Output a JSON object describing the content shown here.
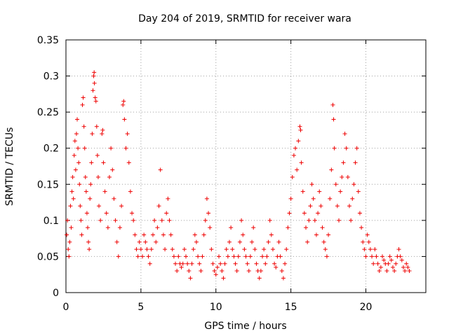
{
  "chart_data": {
    "type": "scatter",
    "title": "Day 204 of 2019, SRMTID for receiver wara",
    "xlabel": "GPS time / hours",
    "ylabel": "SRMTID / TECUs",
    "xlim": [
      0,
      24
    ],
    "ylim": [
      0,
      0.35
    ],
    "xticks": [
      0,
      5,
      10,
      15,
      20
    ],
    "xtick_labels": [
      "0",
      "5",
      "10",
      "15",
      "20"
    ],
    "yticks": [
      0,
      0.05,
      0.1,
      0.15,
      0.2,
      0.25,
      0.3,
      0.35
    ],
    "ytick_labels": [
      "0",
      "0.05",
      "0.1",
      "0.15",
      "0.2",
      "0.25",
      "0.3",
      "0.35"
    ],
    "grid": true,
    "marker": "+",
    "color": "#ee0000",
    "series": [
      {
        "name": "SRMTID",
        "points": [
          [
            0.05,
            0.08
          ],
          [
            0.1,
            0.1
          ],
          [
            0.15,
            0.06
          ],
          [
            0.2,
            0.05
          ],
          [
            0.25,
            0.07
          ],
          [
            0.3,
            0.12
          ],
          [
            0.35,
            0.09
          ],
          [
            0.4,
            0.14
          ],
          [
            0.45,
            0.16
          ],
          [
            0.5,
            0.13
          ],
          [
            0.55,
            0.19
          ],
          [
            0.6,
            0.21
          ],
          [
            0.65,
            0.17
          ],
          [
            0.7,
            0.22
          ],
          [
            0.75,
            0.24
          ],
          [
            0.8,
            0.2
          ],
          [
            0.85,
            0.18
          ],
          [
            0.9,
            0.15
          ],
          [
            0.95,
            0.12
          ],
          [
            1.0,
            0.1
          ],
          [
            1.05,
            0.08
          ],
          [
            1.1,
            0.26
          ],
          [
            1.15,
            0.27
          ],
          [
            1.2,
            0.23
          ],
          [
            1.25,
            0.2
          ],
          [
            1.3,
            0.16
          ],
          [
            1.35,
            0.14
          ],
          [
            1.4,
            0.11
          ],
          [
            1.45,
            0.09
          ],
          [
            1.5,
            0.07
          ],
          [
            1.55,
            0.06
          ],
          [
            1.6,
            0.13
          ],
          [
            1.65,
            0.15
          ],
          [
            1.7,
            0.18
          ],
          [
            1.75,
            0.22
          ],
          [
            1.8,
            0.28
          ],
          [
            1.85,
            0.3
          ],
          [
            1.88,
            0.305
          ],
          [
            1.9,
            0.29
          ],
          [
            1.95,
            0.27
          ],
          [
            2.0,
            0.265
          ],
          [
            2.05,
            0.23
          ],
          [
            2.1,
            0.19
          ],
          [
            2.15,
            0.16
          ],
          [
            2.2,
            0.12
          ],
          [
            2.3,
            0.1
          ],
          [
            2.4,
            0.22
          ],
          [
            2.45,
            0.225
          ],
          [
            2.5,
            0.18
          ],
          [
            2.6,
            0.14
          ],
          [
            2.7,
            0.11
          ],
          [
            2.8,
            0.09
          ],
          [
            2.9,
            0.16
          ],
          [
            3.0,
            0.2
          ],
          [
            3.1,
            0.17
          ],
          [
            3.2,
            0.13
          ],
          [
            3.3,
            0.1
          ],
          [
            3.4,
            0.07
          ],
          [
            3.5,
            0.05
          ],
          [
            3.6,
            0.09
          ],
          [
            3.7,
            0.12
          ],
          [
            3.8,
            0.26
          ],
          [
            3.85,
            0.265
          ],
          [
            3.9,
            0.24
          ],
          [
            4.0,
            0.2
          ],
          [
            4.1,
            0.22
          ],
          [
            4.2,
            0.18
          ],
          [
            4.3,
            0.14
          ],
          [
            4.4,
            0.11
          ],
          [
            4.5,
            0.1
          ],
          [
            4.6,
            0.08
          ],
          [
            4.7,
            0.06
          ],
          [
            4.8,
            0.05
          ],
          [
            4.9,
            0.07
          ],
          [
            5.0,
            0.06
          ],
          [
            5.1,
            0.05
          ],
          [
            5.2,
            0.08
          ],
          [
            5.3,
            0.07
          ],
          [
            5.4,
            0.06
          ],
          [
            5.5,
            0.05
          ],
          [
            5.6,
            0.04
          ],
          [
            5.7,
            0.06
          ],
          [
            5.8,
            0.08
          ],
          [
            5.9,
            0.1
          ],
          [
            6.0,
            0.07
          ],
          [
            6.1,
            0.09
          ],
          [
            6.2,
            0.12
          ],
          [
            6.3,
            0.17
          ],
          [
            6.4,
            0.1
          ],
          [
            6.5,
            0.08
          ],
          [
            6.6,
            0.06
          ],
          [
            6.7,
            0.11
          ],
          [
            6.8,
            0.13
          ],
          [
            6.9,
            0.1
          ],
          [
            7.0,
            0.08
          ],
          [
            7.1,
            0.06
          ],
          [
            7.2,
            0.05
          ],
          [
            7.3,
            0.04
          ],
          [
            7.4,
            0.03
          ],
          [
            7.5,
            0.05
          ],
          [
            7.6,
            0.04
          ],
          [
            7.7,
            0.035
          ],
          [
            7.8,
            0.04
          ],
          [
            7.9,
            0.06
          ],
          [
            8.0,
            0.05
          ],
          [
            8.1,
            0.04
          ],
          [
            8.2,
            0.03
          ],
          [
            8.3,
            0.02
          ],
          [
            8.4,
            0.04
          ],
          [
            8.5,
            0.06
          ],
          [
            8.6,
            0.08
          ],
          [
            8.7,
            0.07
          ],
          [
            8.8,
            0.05
          ],
          [
            8.9,
            0.04
          ],
          [
            9.0,
            0.03
          ],
          [
            9.1,
            0.05
          ],
          [
            9.2,
            0.08
          ],
          [
            9.3,
            0.1
          ],
          [
            9.4,
            0.13
          ],
          [
            9.5,
            0.11
          ],
          [
            9.6,
            0.09
          ],
          [
            9.7,
            0.06
          ],
          [
            9.8,
            0.04
          ],
          [
            9.9,
            0.03
          ],
          [
            10.0,
            0.025
          ],
          [
            10.1,
            0.035
          ],
          [
            10.2,
            0.05
          ],
          [
            10.3,
            0.04
          ],
          [
            10.4,
            0.03
          ],
          [
            10.5,
            0.02
          ],
          [
            10.6,
            0.04
          ],
          [
            10.7,
            0.06
          ],
          [
            10.8,
            0.05
          ],
          [
            10.9,
            0.07
          ],
          [
            11.0,
            0.09
          ],
          [
            11.1,
            0.06
          ],
          [
            11.2,
            0.05
          ],
          [
            11.3,
            0.04
          ],
          [
            11.4,
            0.03
          ],
          [
            11.5,
            0.05
          ],
          [
            11.6,
            0.07
          ],
          [
            11.7,
            0.1
          ],
          [
            11.8,
            0.08
          ],
          [
            11.9,
            0.06
          ],
          [
            12.0,
            0.05
          ],
          [
            12.1,
            0.04
          ],
          [
            12.2,
            0.03
          ],
          [
            12.3,
            0.05
          ],
          [
            12.4,
            0.07
          ],
          [
            12.5,
            0.09
          ],
          [
            12.6,
            0.06
          ],
          [
            12.7,
            0.04
          ],
          [
            12.8,
            0.03
          ],
          [
            12.9,
            0.02
          ],
          [
            13.0,
            0.03
          ],
          [
            13.1,
            0.05
          ],
          [
            13.2,
            0.06
          ],
          [
            13.3,
            0.04
          ],
          [
            13.4,
            0.05
          ],
          [
            13.5,
            0.07
          ],
          [
            13.6,
            0.1
          ],
          [
            13.7,
            0.08
          ],
          [
            13.8,
            0.06
          ],
          [
            13.9,
            0.04
          ],
          [
            14.0,
            0.035
          ],
          [
            14.1,
            0.05
          ],
          [
            14.2,
            0.07
          ],
          [
            14.3,
            0.05
          ],
          [
            14.4,
            0.03
          ],
          [
            14.5,
            0.02
          ],
          [
            14.6,
            0.04
          ],
          [
            14.7,
            0.06
          ],
          [
            14.8,
            0.09
          ],
          [
            14.9,
            0.11
          ],
          [
            15.0,
            0.13
          ],
          [
            15.1,
            0.16
          ],
          [
            15.2,
            0.19
          ],
          [
            15.3,
            0.2
          ],
          [
            15.4,
            0.17
          ],
          [
            15.5,
            0.21
          ],
          [
            15.6,
            0.23
          ],
          [
            15.65,
            0.225
          ],
          [
            15.7,
            0.18
          ],
          [
            15.8,
            0.14
          ],
          [
            15.9,
            0.11
          ],
          [
            16.0,
            0.09
          ],
          [
            16.1,
            0.07
          ],
          [
            16.2,
            0.1
          ],
          [
            16.3,
            0.12
          ],
          [
            16.4,
            0.15
          ],
          [
            16.5,
            0.13
          ],
          [
            16.6,
            0.1
          ],
          [
            16.7,
            0.08
          ],
          [
            16.8,
            0.11
          ],
          [
            16.9,
            0.14
          ],
          [
            17.0,
            0.12
          ],
          [
            17.1,
            0.09
          ],
          [
            17.2,
            0.07
          ],
          [
            17.3,
            0.06
          ],
          [
            17.4,
            0.05
          ],
          [
            17.5,
            0.08
          ],
          [
            17.6,
            0.13
          ],
          [
            17.7,
            0.17
          ],
          [
            17.8,
            0.26
          ],
          [
            17.85,
            0.24
          ],
          [
            17.9,
            0.2
          ],
          [
            18.0,
            0.15
          ],
          [
            18.1,
            0.12
          ],
          [
            18.2,
            0.1
          ],
          [
            18.3,
            0.14
          ],
          [
            18.4,
            0.16
          ],
          [
            18.5,
            0.18
          ],
          [
            18.6,
            0.22
          ],
          [
            18.7,
            0.2
          ],
          [
            18.8,
            0.16
          ],
          [
            18.9,
            0.12
          ],
          [
            19.0,
            0.1
          ],
          [
            19.1,
            0.13
          ],
          [
            19.2,
            0.15
          ],
          [
            19.3,
            0.18
          ],
          [
            19.4,
            0.2
          ],
          [
            19.5,
            0.14
          ],
          [
            19.6,
            0.11
          ],
          [
            19.7,
            0.09
          ],
          [
            19.8,
            0.07
          ],
          [
            19.9,
            0.06
          ],
          [
            20.0,
            0.05
          ],
          [
            20.1,
            0.08
          ],
          [
            20.2,
            0.07
          ],
          [
            20.3,
            0.06
          ],
          [
            20.4,
            0.05
          ],
          [
            20.5,
            0.04
          ],
          [
            20.6,
            0.06
          ],
          [
            20.7,
            0.05
          ],
          [
            20.8,
            0.04
          ],
          [
            20.9,
            0.03
          ],
          [
            21.0,
            0.035
          ],
          [
            21.1,
            0.05
          ],
          [
            21.2,
            0.045
          ],
          [
            21.3,
            0.04
          ],
          [
            21.4,
            0.03
          ],
          [
            21.5,
            0.04
          ],
          [
            21.6,
            0.05
          ],
          [
            21.7,
            0.045
          ],
          [
            21.8,
            0.035
          ],
          [
            21.9,
            0.03
          ],
          [
            22.0,
            0.04
          ],
          [
            22.1,
            0.05
          ],
          [
            22.2,
            0.06
          ],
          [
            22.3,
            0.05
          ],
          [
            22.4,
            0.045
          ],
          [
            22.5,
            0.035
          ],
          [
            22.6,
            0.03
          ],
          [
            22.7,
            0.04
          ],
          [
            22.8,
            0.035
          ],
          [
            22.9,
            0.03
          ]
        ]
      }
    ]
  }
}
